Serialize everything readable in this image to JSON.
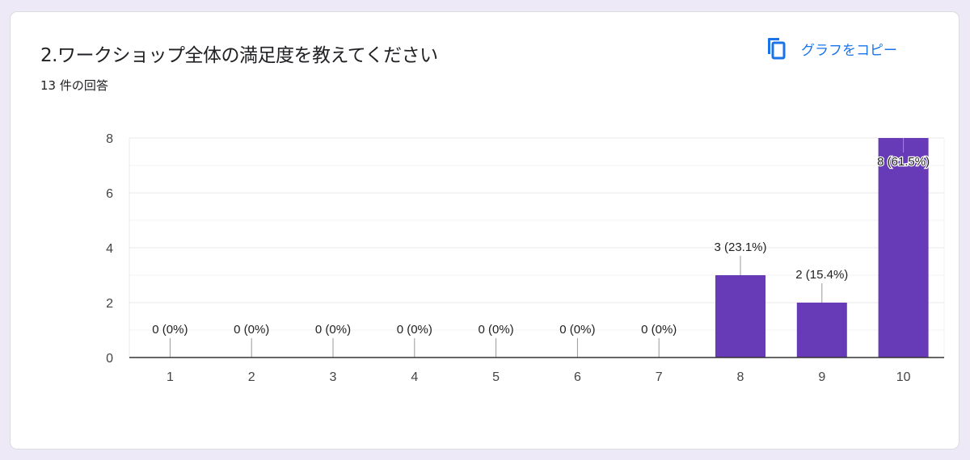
{
  "header": {
    "title": "2.ワークショップ全体の満足度を教えてください",
    "response_count": "13 件の回答",
    "copy_label": "グラフをコピー",
    "copy_icon": "copy-icon",
    "accent": "#1a73e8"
  },
  "chart_data": {
    "type": "bar",
    "categories": [
      "1",
      "2",
      "3",
      "4",
      "5",
      "6",
      "7",
      "8",
      "9",
      "10"
    ],
    "values": [
      0,
      0,
      0,
      0,
      0,
      0,
      0,
      3,
      2,
      8
    ],
    "data_labels": [
      "0 (0%)",
      "0 (0%)",
      "0 (0%)",
      "0 (0%)",
      "0 (0%)",
      "0 (0%)",
      "0 (0%)",
      "3 (23.1%)",
      "2 (15.4%)",
      "8 (61.5%)"
    ],
    "yticks": [
      "0",
      "2",
      "4",
      "6",
      "8"
    ],
    "ylim": [
      0,
      8
    ],
    "grid": true,
    "bar_color": "#673ab7",
    "xlabel": "",
    "ylabel": "",
    "title": ""
  }
}
